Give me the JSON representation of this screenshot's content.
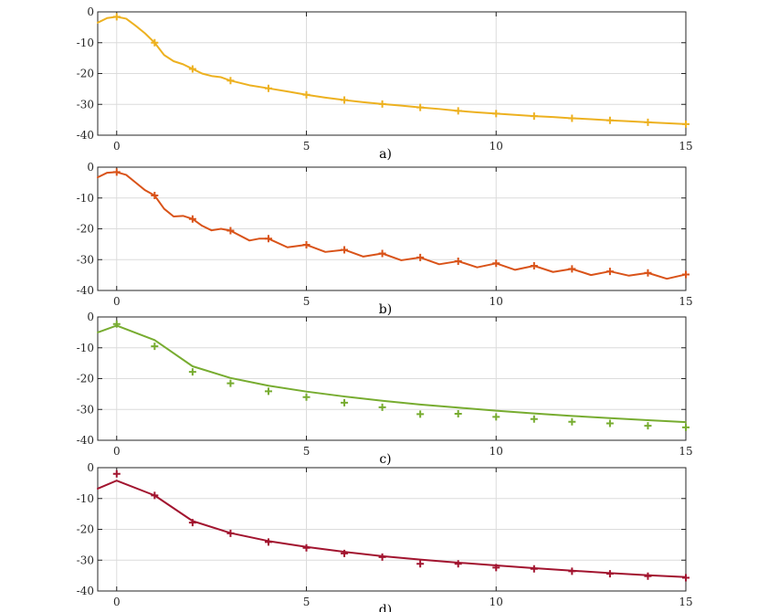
{
  "chart_data": [
    {
      "type": "line",
      "label": "a)",
      "xlim": [
        -0.5,
        15
      ],
      "ylim": [
        -40,
        0
      ],
      "xticks": [
        0,
        5,
        10,
        15
      ],
      "yticks": [
        0,
        -10,
        -20,
        -30,
        -40
      ],
      "grid": true,
      "color": "#EDB120",
      "series": [
        {
          "style": "line",
          "x": [
            -0.5,
            -0.25,
            0,
            0.25,
            0.5,
            0.75,
            1,
            1.25,
            1.5,
            1.75,
            2,
            2.25,
            2.5,
            2.75,
            3,
            3.5,
            4,
            4.5,
            5,
            5.5,
            6,
            6.5,
            7,
            7.5,
            8,
            8.5,
            9,
            9.5,
            10,
            10.5,
            11,
            11.5,
            12,
            12.5,
            13,
            13.5,
            14,
            14.5,
            15
          ],
          "y": [
            -3.5,
            -2.0,
            -1.6,
            -2.2,
            -4.5,
            -7.0,
            -10.0,
            -14.0,
            -16.0,
            -17.0,
            -18.5,
            -20.0,
            -20.8,
            -21.2,
            -22.3,
            -23.8,
            -24.8,
            -25.8,
            -26.9,
            -27.8,
            -28.6,
            -29.3,
            -29.9,
            -30.4,
            -31.0,
            -31.5,
            -32.1,
            -32.6,
            -33.0,
            -33.4,
            -33.8,
            -34.1,
            -34.5,
            -34.8,
            -35.2,
            -35.5,
            -35.8,
            -36.1,
            -36.4
          ]
        },
        {
          "style": "markers",
          "x": [
            0,
            1,
            2,
            3,
            4,
            5,
            6,
            7,
            8,
            9,
            10,
            11,
            12,
            13,
            14,
            15
          ],
          "y": [
            -1.6,
            -10.0,
            -18.5,
            -22.3,
            -24.8,
            -26.9,
            -28.6,
            -29.9,
            -31.0,
            -32.1,
            -33.0,
            -33.8,
            -34.5,
            -35.2,
            -35.8,
            -36.4
          ]
        }
      ]
    },
    {
      "type": "line",
      "label": "b)",
      "xlim": [
        -0.5,
        15
      ],
      "ylim": [
        -40,
        0
      ],
      "xticks": [
        0,
        5,
        10,
        15
      ],
      "yticks": [
        0,
        -10,
        -20,
        -30,
        -40
      ],
      "grid": true,
      "color": "#D95319",
      "series": [
        {
          "style": "line",
          "x": [
            -0.5,
            -0.25,
            0,
            0.25,
            0.5,
            0.75,
            1,
            1.25,
            1.5,
            1.75,
            2,
            2.25,
            2.5,
            2.75,
            3,
            3.5,
            3.75,
            4,
            4.5,
            5,
            5.5,
            6,
            6.5,
            7,
            7.5,
            8,
            8.5,
            9,
            9.5,
            10,
            10.5,
            11,
            11.5,
            12,
            12.5,
            13,
            13.5,
            14,
            14.5,
            15
          ],
          "y": [
            -3.3,
            -1.8,
            -1.6,
            -2.5,
            -5.0,
            -7.5,
            -9.2,
            -13.5,
            -16.0,
            -15.8,
            -16.8,
            -19.0,
            -20.5,
            -20.0,
            -20.6,
            -23.8,
            -23.2,
            -23.2,
            -26.0,
            -25.2,
            -27.5,
            -26.8,
            -29.0,
            -28.0,
            -30.2,
            -29.3,
            -31.5,
            -30.5,
            -32.5,
            -31.2,
            -33.3,
            -32.0,
            -34.0,
            -33.0,
            -35.0,
            -33.8,
            -35.2,
            -34.3,
            -36.2,
            -34.8
          ]
        },
        {
          "style": "markers",
          "x": [
            0,
            1,
            2,
            3,
            4,
            5,
            6,
            7,
            8,
            9,
            10,
            11,
            12,
            13,
            14,
            15
          ],
          "y": [
            -1.6,
            -9.2,
            -16.8,
            -20.6,
            -23.2,
            -25.2,
            -26.8,
            -28.0,
            -29.3,
            -30.5,
            -31.2,
            -32.0,
            -33.0,
            -33.8,
            -34.3,
            -34.8
          ]
        }
      ]
    },
    {
      "type": "line",
      "label": "c)",
      "xlim": [
        -0.5,
        15
      ],
      "ylim": [
        -40,
        0
      ],
      "xticks": [
        0,
        5,
        10,
        15
      ],
      "yticks": [
        0,
        -10,
        -20,
        -30,
        -40
      ],
      "grid": true,
      "color": "#77AC30",
      "series": [
        {
          "style": "line",
          "x": [
            -0.5,
            0,
            1,
            2,
            3,
            4,
            5,
            6,
            7,
            8,
            9,
            10,
            11,
            12,
            13,
            14,
            15
          ],
          "y": [
            -5.0,
            -2.8,
            -7.5,
            -16.0,
            -19.8,
            -22.3,
            -24.2,
            -25.8,
            -27.2,
            -28.4,
            -29.4,
            -30.4,
            -31.3,
            -32.1,
            -32.8,
            -33.5,
            -34.1
          ]
        },
        {
          "style": "markers",
          "x": [
            0,
            1,
            2,
            3,
            4,
            5,
            6,
            7,
            8,
            9,
            10,
            11,
            12,
            13,
            14,
            15
          ],
          "y": [
            -2.3,
            -9.5,
            -17.8,
            -21.5,
            -24.1,
            -26.0,
            -27.8,
            -29.3,
            -31.5,
            -31.4,
            -32.4,
            -33.1,
            -34.0,
            -34.5,
            -35.3,
            -35.8
          ]
        }
      ]
    },
    {
      "type": "line",
      "label": "d)",
      "xlim": [
        -0.5,
        15
      ],
      "ylim": [
        -40,
        0
      ],
      "xticks": [
        0,
        5,
        10,
        15
      ],
      "yticks": [
        0,
        -10,
        -20,
        -30,
        -40
      ],
      "grid": true,
      "color": "#A2142F",
      "series": [
        {
          "style": "line",
          "x": [
            -0.5,
            0,
            1,
            2,
            3,
            4,
            5,
            6,
            7,
            8,
            9,
            10,
            11,
            12,
            13,
            14,
            15
          ],
          "y": [
            -6.8,
            -4.2,
            -9.0,
            -17.3,
            -21.2,
            -23.8,
            -25.7,
            -27.3,
            -28.7,
            -29.8,
            -30.8,
            -31.7,
            -32.6,
            -33.4,
            -34.2,
            -34.9,
            -35.5
          ]
        },
        {
          "style": "markers",
          "x": [
            0,
            1,
            2,
            3,
            4,
            5,
            6,
            7,
            8,
            9,
            10,
            11,
            12,
            13,
            14,
            15
          ],
          "y": [
            -2.0,
            -9.0,
            -17.8,
            -21.3,
            -24.1,
            -26.0,
            -27.8,
            -29.0,
            -31.2,
            -31.2,
            -32.4,
            -32.8,
            -33.6,
            -34.4,
            -35.2,
            -35.7
          ]
        }
      ]
    }
  ]
}
